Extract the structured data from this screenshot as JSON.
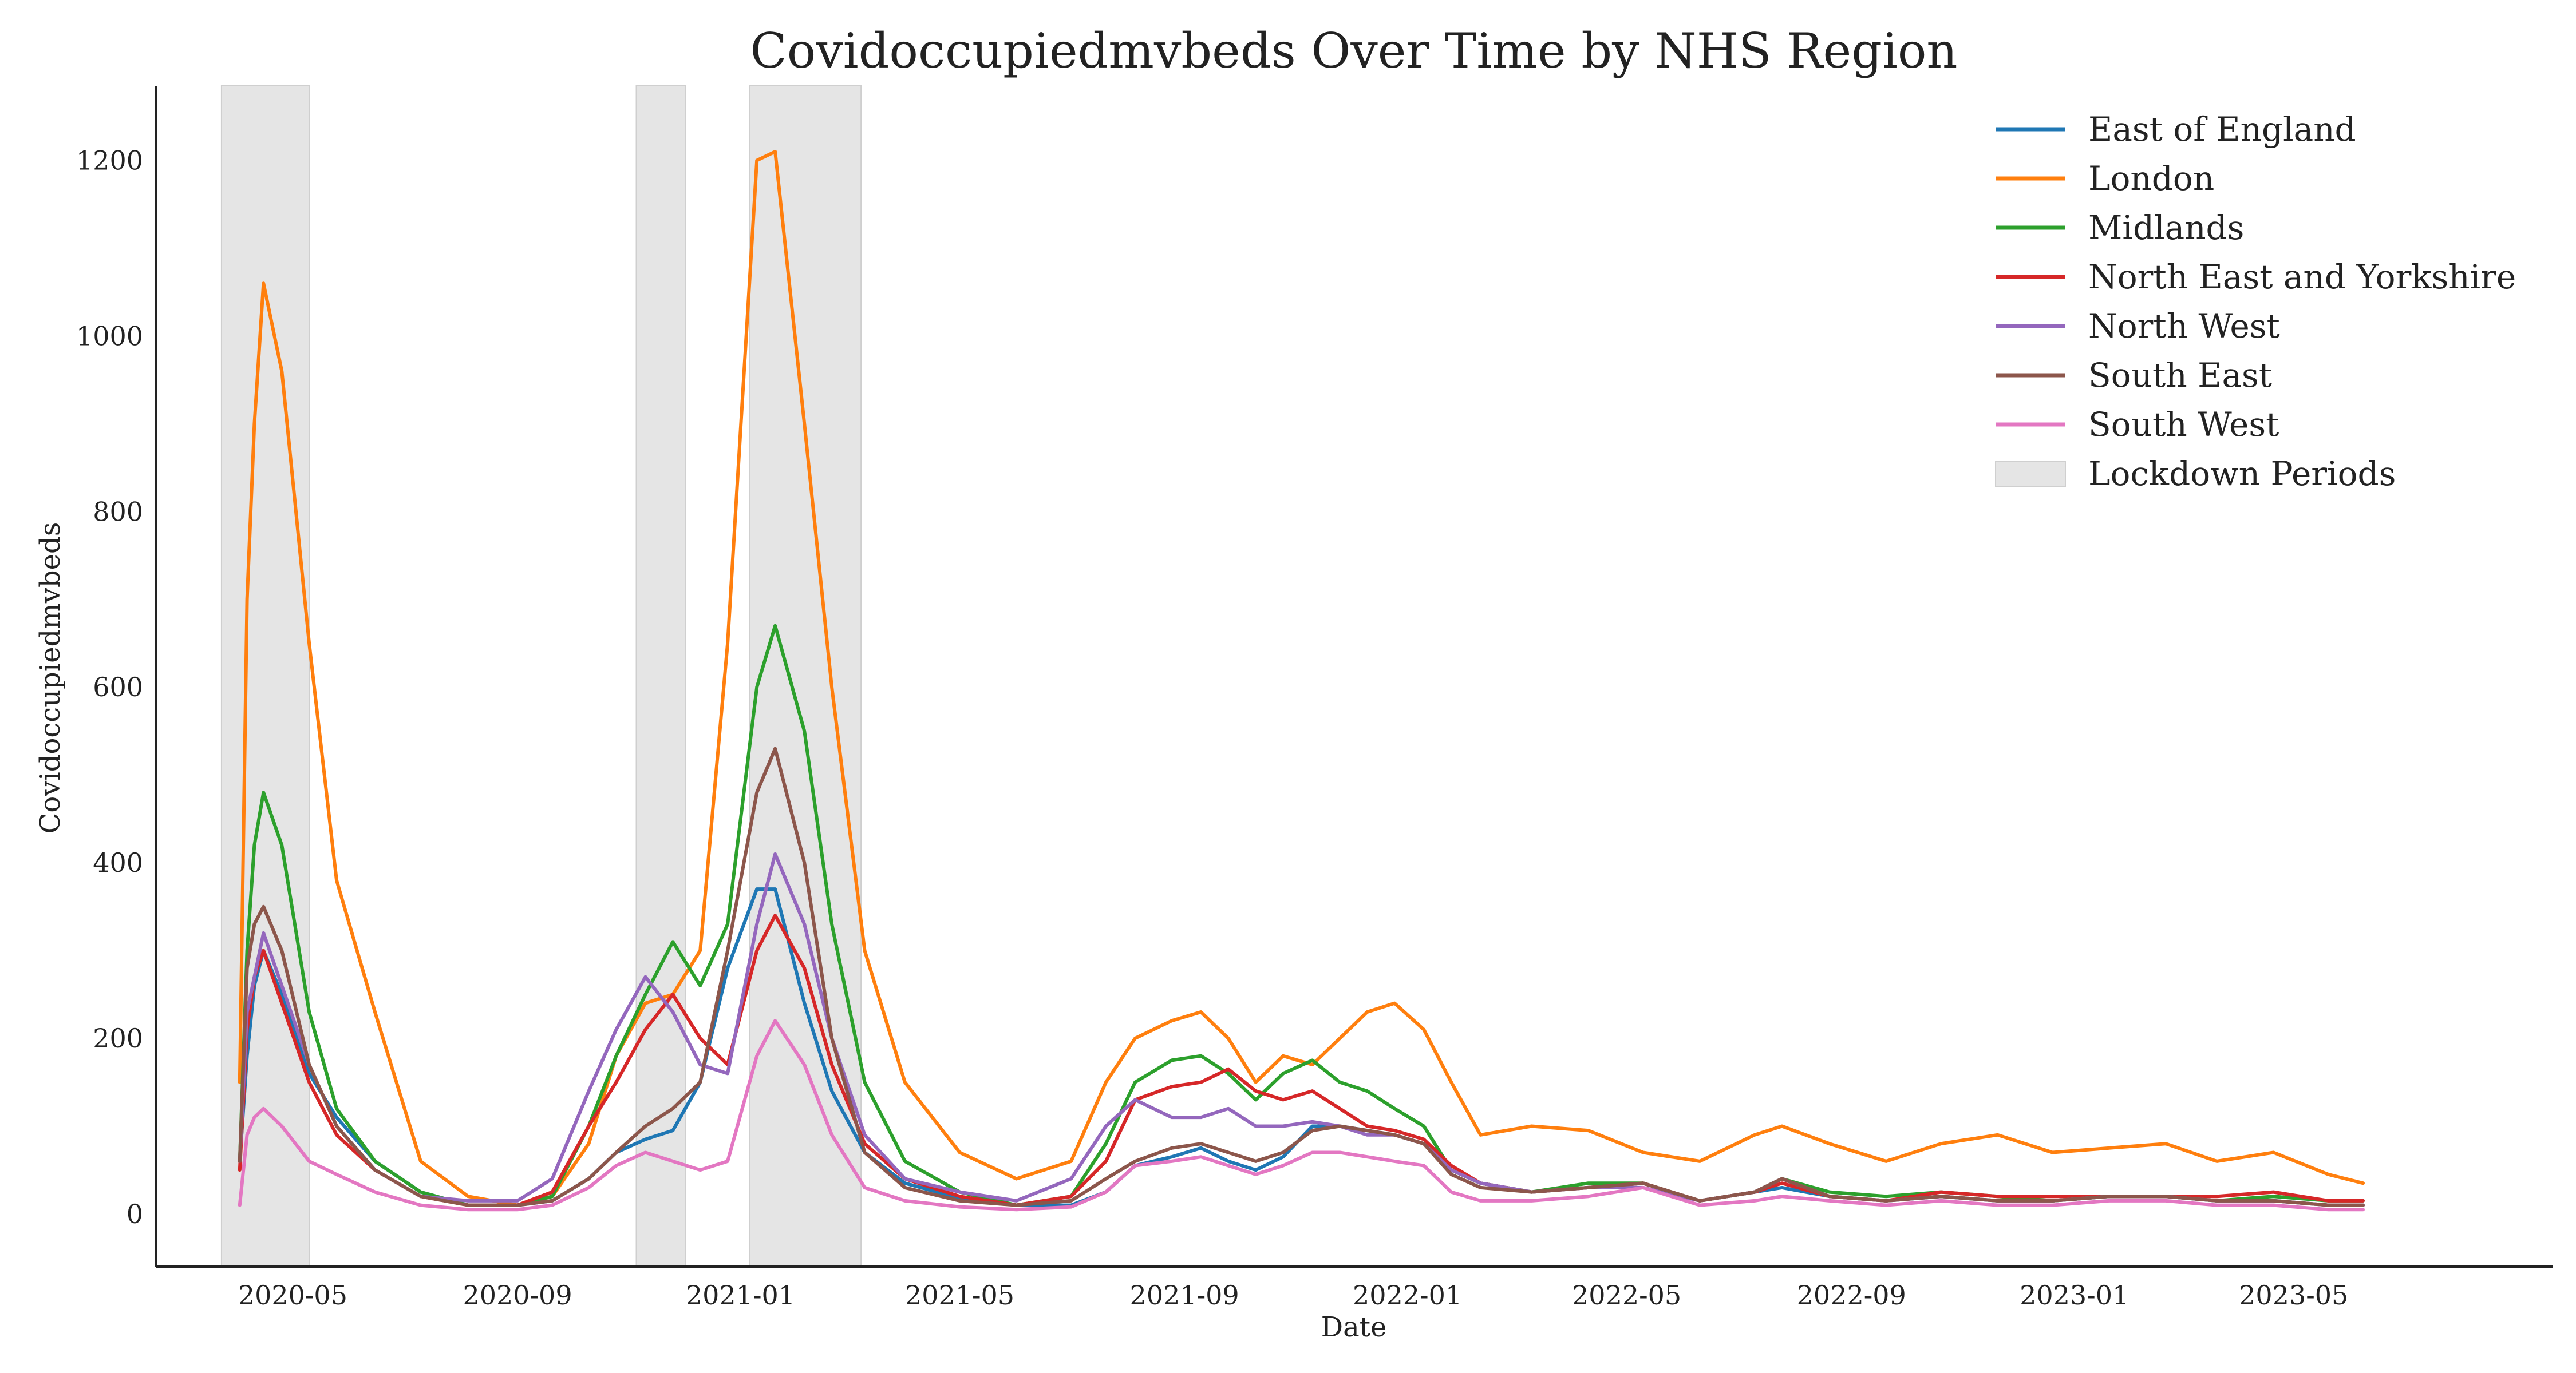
{
  "chart_data": {
    "type": "line",
    "title": "Covidoccupiedmvbeds Over Time by NHS Region",
    "xlabel": "Date",
    "ylabel": "Covidoccupiedmvbeds",
    "xlim": [
      "2020-02-16",
      "2023-09-20"
    ],
    "ylim": [
      -60,
      1285
    ],
    "yticks": [
      0,
      200,
      400,
      600,
      800,
      1000,
      1200
    ],
    "xticks": [
      {
        "date": "2020-05-01",
        "label": "2020-05"
      },
      {
        "date": "2020-09-01",
        "label": "2020-09"
      },
      {
        "date": "2021-01-01",
        "label": "2021-01"
      },
      {
        "date": "2021-05-01",
        "label": "2021-05"
      },
      {
        "date": "2021-09-01",
        "label": "2021-09"
      },
      {
        "date": "2022-01-01",
        "label": "2022-01"
      },
      {
        "date": "2022-05-01",
        "label": "2022-05"
      },
      {
        "date": "2022-09-01",
        "label": "2022-09"
      },
      {
        "date": "2023-01-01",
        "label": "2023-01"
      },
      {
        "date": "2023-05-01",
        "label": "2023-05"
      }
    ],
    "grid": false,
    "legend_position": "top-right",
    "dates": [
      "2020-04-02",
      "2020-04-06",
      "2020-04-10",
      "2020-04-15",
      "2020-04-25",
      "2020-05-10",
      "2020-05-25",
      "2020-06-15",
      "2020-07-10",
      "2020-08-05",
      "2020-09-01",
      "2020-09-20",
      "2020-10-10",
      "2020-10-25",
      "2020-11-10",
      "2020-11-25",
      "2020-12-10",
      "2020-12-25",
      "2021-01-10",
      "2021-01-20",
      "2021-02-05",
      "2021-02-20",
      "2021-03-10",
      "2021-04-01",
      "2021-05-01",
      "2021-06-01",
      "2021-07-01",
      "2021-07-20",
      "2021-08-05",
      "2021-08-25",
      "2021-09-10",
      "2021-09-25",
      "2021-10-10",
      "2021-10-25",
      "2021-11-10",
      "2021-11-25",
      "2021-12-10",
      "2021-12-25",
      "2022-01-10",
      "2022-01-25",
      "2022-02-10",
      "2022-03-10",
      "2022-04-10",
      "2022-05-10",
      "2022-06-10",
      "2022-07-10",
      "2022-07-25",
      "2022-08-20",
      "2022-09-20",
      "2022-10-20",
      "2022-11-20",
      "2022-12-20",
      "2023-01-20",
      "2023-02-20",
      "2023-03-20",
      "2023-04-20",
      "2023-05-20",
      "2023-06-08"
    ],
    "series": [
      {
        "name": "East of England",
        "color": "#1f77b4",
        "values": [
          60,
          180,
          260,
          300,
          250,
          160,
          110,
          60,
          25,
          10,
          10,
          15,
          40,
          70,
          85,
          95,
          150,
          280,
          370,
          370,
          240,
          140,
          70,
          35,
          18,
          10,
          10,
          25,
          55,
          65,
          75,
          60,
          50,
          65,
          100,
          100,
          95,
          90,
          80,
          50,
          35,
          25,
          30,
          35,
          15,
          25,
          30,
          20,
          15,
          20,
          15,
          15,
          20,
          20,
          15,
          15,
          10,
          10
        ]
      },
      {
        "name": "London",
        "color": "#ff7f0e",
        "values": [
          150,
          700,
          900,
          1060,
          960,
          650,
          380,
          230,
          60,
          20,
          10,
          20,
          80,
          180,
          240,
          250,
          300,
          650,
          1200,
          1210,
          900,
          600,
          300,
          150,
          70,
          40,
          60,
          150,
          200,
          220,
          230,
          200,
          150,
          180,
          170,
          200,
          230,
          240,
          210,
          150,
          90,
          100,
          95,
          70,
          60,
          90,
          100,
          80,
          60,
          80,
          90,
          70,
          75,
          80,
          60,
          70,
          45,
          35
        ]
      },
      {
        "name": "Midlands",
        "color": "#2ca02c",
        "values": [
          60,
          300,
          420,
          480,
          420,
          230,
          120,
          60,
          25,
          10,
          10,
          20,
          100,
          180,
          250,
          310,
          260,
          330,
          600,
          670,
          550,
          330,
          150,
          60,
          25,
          10,
          20,
          80,
          150,
          175,
          180,
          160,
          130,
          160,
          175,
          150,
          140,
          120,
          100,
          50,
          35,
          25,
          35,
          35,
          15,
          25,
          40,
          25,
          20,
          25,
          20,
          15,
          20,
          20,
          15,
          20,
          15,
          15
        ]
      },
      {
        "name": "North East and Yorkshire",
        "color": "#d62728",
        "values": [
          50,
          210,
          270,
          300,
          240,
          150,
          90,
          50,
          20,
          10,
          10,
          25,
          100,
          150,
          210,
          250,
          200,
          170,
          300,
          340,
          280,
          170,
          80,
          40,
          20,
          10,
          20,
          60,
          130,
          145,
          150,
          165,
          140,
          130,
          140,
          120,
          100,
          95,
          85,
          55,
          35,
          25,
          30,
          35,
          15,
          25,
          35,
          20,
          15,
          25,
          20,
          20,
          20,
          20,
          20,
          25,
          15,
          15
        ]
      },
      {
        "name": "North West",
        "color": "#9467bd",
        "values": [
          60,
          230,
          270,
          320,
          260,
          170,
          100,
          50,
          20,
          15,
          15,
          40,
          140,
          210,
          270,
          230,
          170,
          160,
          330,
          410,
          330,
          200,
          90,
          40,
          25,
          15,
          40,
          100,
          130,
          110,
          110,
          120,
          100,
          100,
          105,
          100,
          90,
          90,
          80,
          50,
          35,
          25,
          30,
          30,
          15,
          25,
          40,
          20,
          15,
          20,
          15,
          15,
          20,
          20,
          15,
          15,
          10,
          10
        ]
      },
      {
        "name": "South East",
        "color": "#8c564b",
        "values": [
          60,
          280,
          330,
          350,
          300,
          170,
          100,
          50,
          20,
          10,
          10,
          15,
          40,
          70,
          100,
          120,
          150,
          300,
          480,
          530,
          400,
          200,
          70,
          30,
          15,
          10,
          15,
          40,
          60,
          75,
          80,
          70,
          60,
          70,
          95,
          100,
          95,
          90,
          80,
          45,
          30,
          25,
          30,
          35,
          15,
          25,
          40,
          20,
          15,
          20,
          15,
          15,
          20,
          20,
          15,
          15,
          10,
          10
        ]
      },
      {
        "name": "South West",
        "color": "#e377c2",
        "values": [
          10,
          90,
          110,
          120,
          100,
          60,
          45,
          25,
          10,
          5,
          5,
          10,
          30,
          55,
          70,
          60,
          50,
          60,
          180,
          220,
          170,
          90,
          30,
          15,
          8,
          5,
          8,
          25,
          55,
          60,
          65,
          55,
          45,
          55,
          70,
          70,
          65,
          60,
          55,
          25,
          15,
          15,
          20,
          30,
          10,
          15,
          20,
          15,
          10,
          15,
          10,
          10,
          15,
          15,
          10,
          10,
          5,
          5
        ]
      }
    ],
    "lockdown_periods": [
      {
        "start": "2020-03-23",
        "end": "2020-05-10"
      },
      {
        "start": "2020-11-05",
        "end": "2020-12-02"
      },
      {
        "start": "2021-01-06",
        "end": "2021-03-08"
      }
    ],
    "lockdown_label": "Lockdown Periods",
    "lockdown_color": "#e5e5e5"
  }
}
